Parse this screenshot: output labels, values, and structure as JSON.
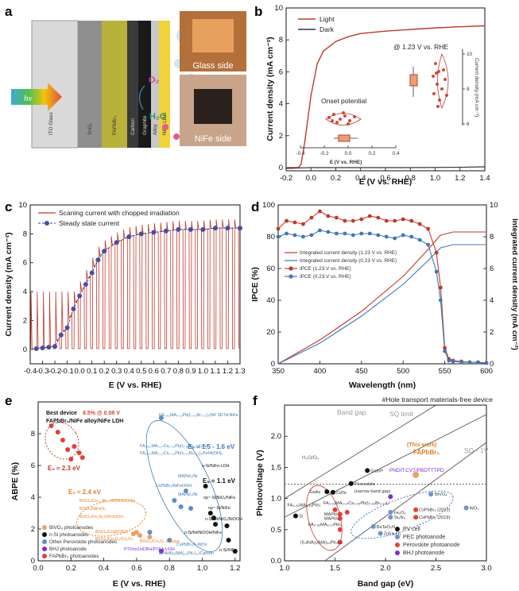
{
  "panels": {
    "a": {
      "label": "a",
      "layers": [
        "ITO Glass",
        "SnO₂",
        "FAPbBr₃",
        "Carbon",
        "Graphite",
        "Alloy",
        "NiFe LDH"
      ],
      "hv": "hν",
      "o2": "O₂",
      "h2o": "H₂O",
      "photo_glass": "Glass side",
      "photo_nife": "NiFe side"
    },
    "b": {
      "label": "b",
      "legend": [
        "Light",
        "Dark"
      ],
      "xlabel": "E (V vs. RHE)",
      "ylabel": "Current density (mA cm⁻²)",
      "xticks": [
        "-0.2",
        "0.0",
        "0.2",
        "0.4",
        "0.6",
        "0.8",
        "1.0",
        "1.2",
        "1.4"
      ],
      "yticks": [
        "0",
        "2",
        "4",
        "6",
        "8",
        "10"
      ],
      "inset_note": "@ 1.23 V vs. RHE",
      "inset_onset": "Onset potential",
      "inset_xlabel": "E (V vs. RHE)",
      "inset_xticks": [
        "-0.4",
        "-0.2",
        "0.0",
        "0.2",
        "0.4"
      ],
      "inset_ylabel": "Current density (mA cm⁻²)",
      "inset_yticks": [
        "6",
        "8",
        "10"
      ]
    },
    "c": {
      "label": "c",
      "legend": [
        "Scaning current with chopped irradiation",
        "Steady state current"
      ],
      "xlabel": "E (V vs. RHE)",
      "ylabel": "Current density (mA cm⁻²)",
      "xticks": [
        "-0.4",
        "-0.3",
        "-0.2",
        "-0.1",
        "0.0",
        "0.1",
        "0.2",
        "0.3",
        "0.4",
        "0.5",
        "0.6",
        "0.7",
        "0.8",
        "0.9",
        "1.0",
        "1.1",
        "1.2",
        "1.3"
      ],
      "yticks": [
        "0",
        "2",
        "4",
        "6",
        "8",
        "10"
      ]
    },
    "d": {
      "label": "d",
      "legend": [
        "Integrated current density (1.23 V vs. RHE)",
        "Integrated current density (0.23 V vs. RHE)",
        "IPCE (1.23 V vs. RHE)",
        "IPCE (0.23 V vs. RHE)"
      ],
      "xlabel": "Wavelength (nm)",
      "ylabel": "IPCE (%)",
      "y2label": "Integrated current density (mA cm⁻²)",
      "xticks": [
        "350",
        "400",
        "450",
        "500",
        "550",
        "600"
      ],
      "yticks": [
        "0",
        "20",
        "40",
        "60",
        "80",
        "100"
      ],
      "y2ticks": [
        "0",
        "2",
        "4",
        "6",
        "8",
        "10"
      ]
    },
    "e": {
      "label": "e",
      "xlabel": "E (V vs. RHE)",
      "ylabel": "ABPE (%)",
      "xticks": [
        "0.0",
        "0.2",
        "0.4",
        "0.6",
        "0.8",
        "1.0",
        "1.2"
      ],
      "yticks": [
        "0",
        "2",
        "4",
        "6",
        "8"
      ],
      "best_line1": "Best device",
      "best_value": "8.5% @ 0.08 V",
      "best_line2": "FAPbBr₃/NiFe alloy/NiFe LDH",
      "eg23": "E₉ ≈ 2.3 eV",
      "eg24": "E₉ ≈ 2.4 eV",
      "eg1516": "E₉ ≈ 1.5 - 1.6 eV",
      "eg11": "E₉ ≈ 1.1 eV",
      "legend": [
        "BiVO₄ photoanodes",
        "n-Si photoanodes",
        "Other Perovskite photoanodes",
        "BHJ photoanode",
        "FAPbBr₃ photoanodes"
      ],
      "annotations": [
        "FA₀.₈₁MA₀.₁₅Pb(I₀.₈₃Br₀.₁₇)₃/NF 3D Ni:NiFe",
        "FA₀.₈₃MA₀.₁₇Cs₀.₀₅Pb(I₀.₈₃Br₀.₁₇)₃/Ni",
        "FA₀.₈₃MA₀.₁₇Cs₀.₀₅Pb(I₀.₈₃Br₀.₁₇)₃/FeNi(OH)ₓ",
        "n-Si/NiFe-LDH",
        "MAPbI₃/Ni",
        "CsPbBr₃/NiFeOOH",
        "MAPbI₃/Ni",
        "np⁺-Si/NiOₓ/NiFe",
        "np⁺-Si/NiFe",
        "n-Si/Ni/NiOₓ/NiOOH",
        "n-Si/Ni/NiOOH/NiFe",
        "BiVO₄/Co₀.₃Ni₀.₇OOH/NiOOH",
        "BiVO₄/NiFeOₓ",
        "BiVO₄/Fe₂Nₓ:O/FeOOH",
        "BiVO₄/Co@CBDI",
        "BiVO₄/Co₃O₄/Co₂O₃",
        "BiVO₄/Co₃O₄ cubane",
        "CsPbBr₃/Ir-WOx",
        "PTO/m2n/DBH/PTAA/LiOH",
        "(5-AVA)₂(MA)₄₀Pb₃I₁₀/Carbon",
        "n-Si/NiFe"
      ]
    },
    "f": {
      "label": "f",
      "title": "#Hole transport materials-free device",
      "xlabel": "Band gap (eV)",
      "ylabel": "Photovoltage (V)",
      "xticks": [
        "1.0",
        "1.5",
        "2.0",
        "2.5",
        "3.0"
      ],
      "yticks": [
        "0.0",
        "0.5",
        "1.0",
        "1.5",
        "2.0"
      ],
      "line_bandgap": "Band gap",
      "line_sq": "SQ limit",
      "line_sq1": "SQ - 1V",
      "h2o_o2": "H₂O/O₂",
      "this_work": "(This work)",
      "this_work_label": "FAPbBr₃",
      "pnd": "PNDIT:CVT/PBDTTTPD",
      "points": [
        "GaInP",
        "Perovskite",
        "(narrow band gap)",
        "GaAs",
        "CdTe",
        "Si",
        "BiVO₄",
        "WO₃",
        "Fe₂O₃",
        "Ta₃N₅",
        "BaTaO₂N",
        "ZnFe₂O₄",
        "CsPbBr₃ (2023)",
        "CsPbBr₃ (2019)",
        "FA₀.₈₁MA₀.₁₅PbI₃",
        "MAPbI₃",
        "MAPbI₃",
        "FA₀.₈₃MA₀.₁₇Cs₀.₀₅Pb(I₀.₈₃Br₀.₁₇)₃",
        "FA₀.₈₃MA₀.₁₇PbI₃",
        "(5-AVA)₂(MA)₄₀Pb₃I₁₀"
      ],
      "legend": [
        "PV cell",
        "PEC photoanode",
        "Perovskite photoanode",
        "BHJ photoanode"
      ]
    }
  },
  "colors": {
    "red": "#c0392b",
    "blue": "#3f78b5",
    "orange": "#e67e22",
    "black": "#111111",
    "purple": "#7b2fd0"
  },
  "chart_data": [
    {
      "panel": "b",
      "type": "line",
      "xlabel": "E (V vs. RHE)",
      "ylabel": "Current density (mA cm⁻²)",
      "xlim": [
        -0.2,
        1.4
      ],
      "ylim": [
        -0.2,
        10
      ],
      "series": [
        {
          "name": "Light",
          "x": [
            -0.2,
            -0.1,
            -0.08,
            -0.05,
            0.0,
            0.05,
            0.1,
            0.2,
            0.3,
            0.4,
            0.6,
            0.8,
            1.0,
            1.2,
            1.4
          ],
          "y": [
            0.0,
            0.0,
            0.2,
            1.6,
            4.5,
            6.5,
            7.3,
            7.9,
            8.2,
            8.4,
            8.55,
            8.65,
            8.75,
            8.82,
            8.88
          ]
        },
        {
          "name": "Dark",
          "x": [
            -0.2,
            0.0,
            0.4,
            0.8,
            1.2,
            1.4
          ],
          "y": [
            -0.05,
            0.0,
            0.0,
            0.0,
            0.02,
            0.05
          ]
        }
      ]
    },
    {
      "panel": "c",
      "type": "line",
      "xlabel": "E (V vs. RHE)",
      "ylabel": "Current density (mA cm⁻²)",
      "xlim": [
        -0.4,
        1.3
      ],
      "ylim": [
        -1,
        10
      ],
      "series": [
        {
          "name": "Steady state current",
          "x": [
            -0.35,
            -0.3,
            -0.25,
            -0.2,
            -0.15,
            -0.1,
            -0.05,
            0.0,
            0.05,
            0.1,
            0.15,
            0.2,
            0.3,
            0.4,
            0.5,
            0.6,
            0.7,
            0.8,
            0.9,
            1.0,
            1.1,
            1.2,
            1.3
          ],
          "y": [
            0.05,
            0.1,
            0.15,
            0.2,
            1.0,
            1.5,
            2.8,
            3.7,
            4.5,
            5.3,
            6.2,
            6.8,
            7.4,
            7.8,
            8.0,
            8.1,
            8.2,
            8.3,
            8.3,
            8.3,
            8.4,
            8.4,
            8.4
          ]
        }
      ]
    },
    {
      "panel": "d",
      "type": "line",
      "xlabel": "Wavelength (nm)",
      "ylabel": "IPCE (%)",
      "xlim": [
        350,
        600
      ],
      "ylim": [
        0,
        100
      ],
      "series": [
        {
          "name": "IPCE (1.23 V vs. RHE)",
          "x": [
            350,
            360,
            370,
            380,
            390,
            400,
            410,
            420,
            430,
            440,
            450,
            460,
            470,
            480,
            490,
            500,
            510,
            520,
            530,
            540,
            545,
            550,
            555,
            560,
            570,
            580,
            590,
            600
          ],
          "y": [
            85,
            90,
            89,
            88,
            92,
            96,
            93,
            92,
            90,
            90,
            91,
            93,
            92,
            90,
            90,
            91,
            90,
            88,
            85,
            70,
            48,
            10,
            3,
            2,
            1.5,
            1,
            1,
            0.5
          ]
        },
        {
          "name": "IPCE (0.23 V vs. RHE)",
          "x": [
            350,
            360,
            370,
            380,
            390,
            400,
            410,
            420,
            430,
            440,
            450,
            460,
            470,
            480,
            490,
            500,
            510,
            520,
            530,
            540,
            545,
            550,
            555,
            560,
            570,
            580,
            590,
            600
          ],
          "y": [
            80,
            82,
            81,
            80,
            81,
            84,
            83,
            82,
            82,
            81,
            82,
            82,
            81,
            80,
            79,
            81,
            80,
            78,
            75,
            58,
            40,
            8,
            2,
            1.5,
            1,
            1,
            0.8,
            0.5
          ]
        },
        {
          "name": "Integrated current density (1.23 V vs. RHE)",
          "x": [
            350,
            400,
            450,
            500,
            530,
            545,
            560,
            600
          ],
          "y": [
            0,
            1.5,
            3.3,
            5.5,
            7.2,
            8.1,
            8.3,
            8.3
          ]
        },
        {
          "name": "Integrated current density (0.23 V vs. RHE)",
          "x": [
            350,
            400,
            450,
            500,
            530,
            545,
            560,
            600
          ],
          "y": [
            0,
            1.3,
            3.0,
            5.0,
            6.5,
            7.3,
            7.5,
            7.5
          ]
        }
      ]
    },
    {
      "panel": "e",
      "type": "scatter",
      "xlabel": "E (V vs. RHE)",
      "ylabel": "ABPE (%)",
      "xlim": [
        0,
        1.23
      ],
      "ylim": [
        0,
        10
      ]
    },
    {
      "panel": "f",
      "type": "scatter",
      "xlabel": "Band gap (eV)",
      "ylabel": "Photovoltage (V)",
      "xlim": [
        1.0,
        3.0
      ],
      "ylim": [
        0,
        2.5
      ]
    }
  ]
}
